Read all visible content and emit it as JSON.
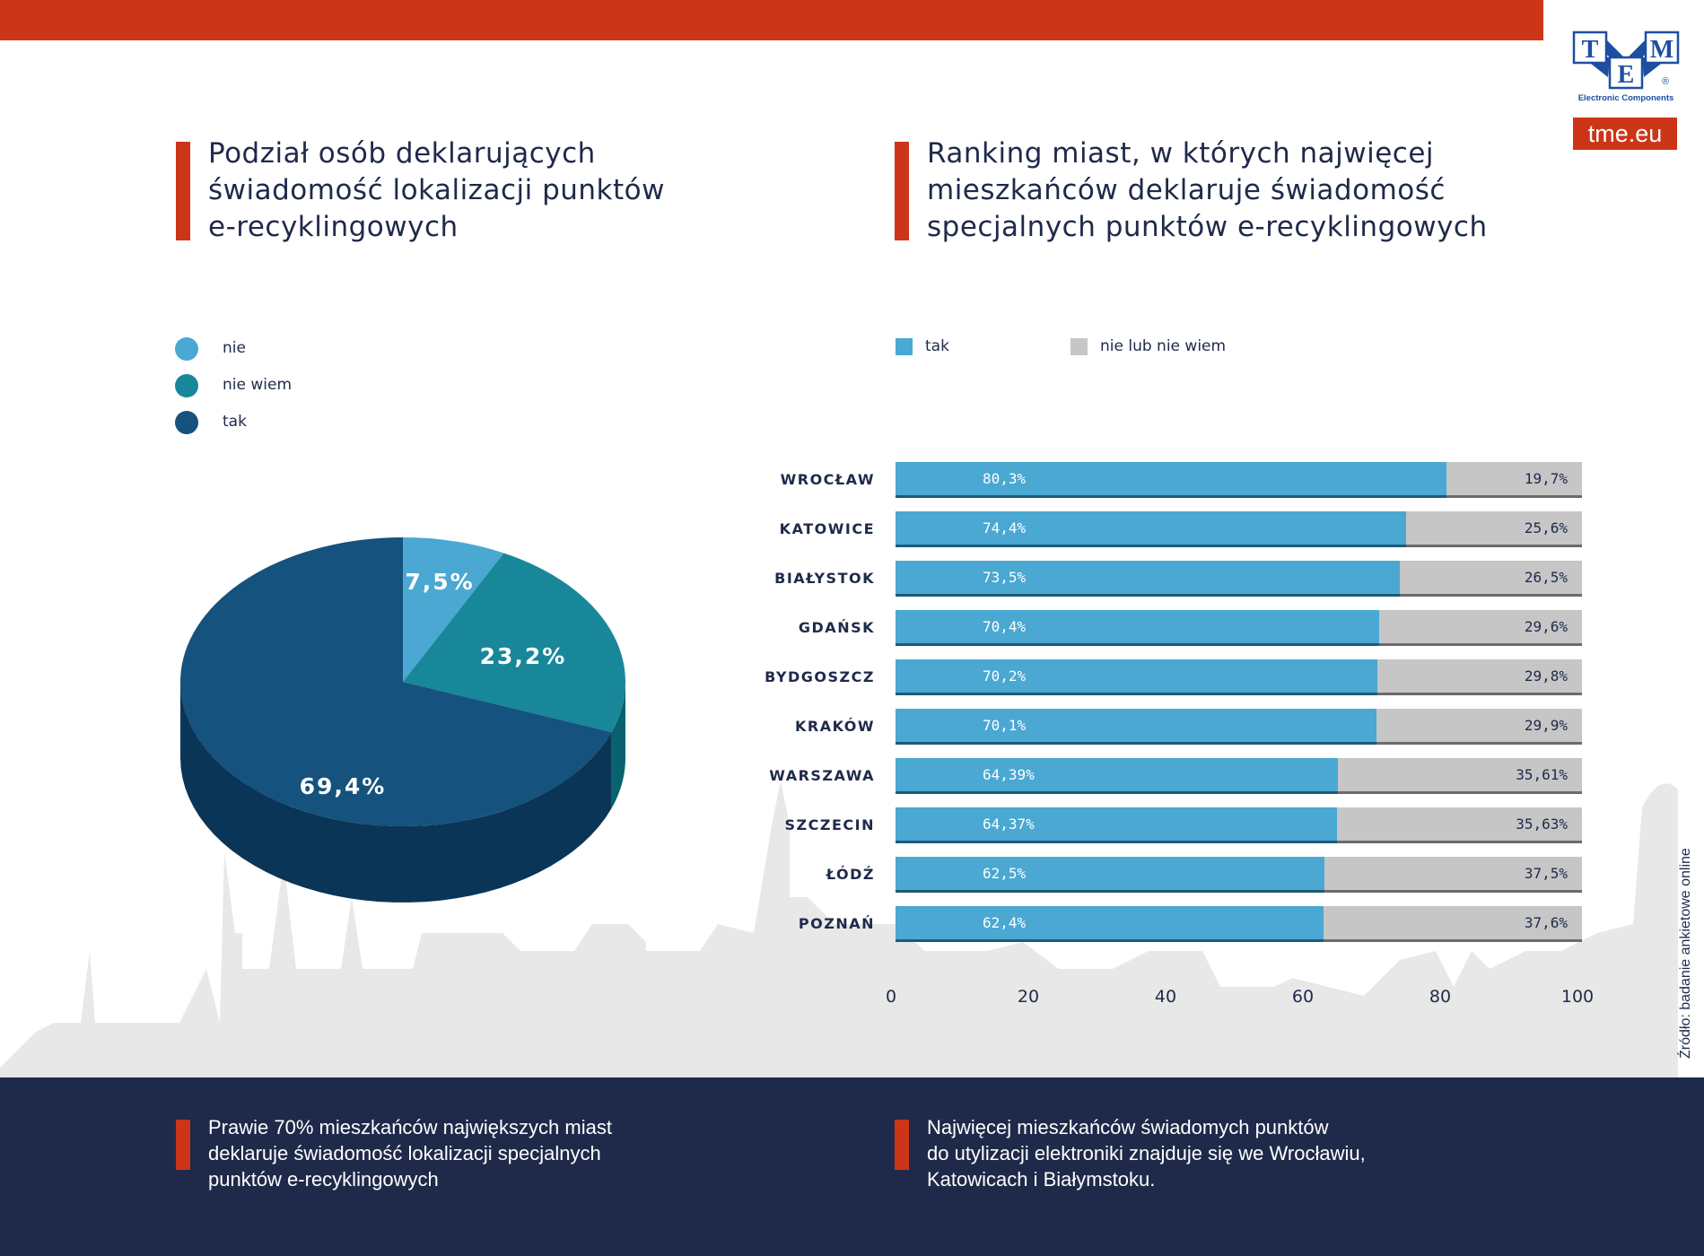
{
  "brand": {
    "logo_letters": [
      "T",
      "M",
      "E"
    ],
    "logo_tagline": "Electronic Components",
    "logo_mark": "®",
    "site": "tme.eu",
    "accent_color": "#cc3518",
    "dark_color": "#1f2a4a"
  },
  "chart_data": [
    {
      "type": "pie",
      "title": "Podział osób deklarujących świadomość lokalizacji punktów e-recyklingowych",
      "title_lines": [
        "Podział osób deklarujących",
        "świadomość lokalizacji punktów",
        "e-recyklingowych"
      ],
      "legend_position": "top-left",
      "legend": [
        {
          "label": "nie",
          "color": "#4aa8d2"
        },
        {
          "label": "nie wiem",
          "color": "#188799"
        },
        {
          "label": "tak",
          "color": "#15527d"
        }
      ],
      "slices": [
        {
          "label": "nie",
          "value": 7.5,
          "display": "7,5%",
          "color": "#4aa8d2",
          "side_color": "#2f7ea3"
        },
        {
          "label": "nie wiem",
          "value": 23.2,
          "display": "23,2%",
          "color": "#188799",
          "side_color": "#07616f"
        },
        {
          "label": "tak",
          "value": 69.4,
          "display": "69,4%",
          "color": "#15527d",
          "side_color": "#0b3556"
        }
      ]
    },
    {
      "type": "bar",
      "orientation": "horizontal",
      "stacked": true,
      "title": "Ranking miast, w których najwięcej mieszkańców deklaruje świadomość specjalnych punktów e-recyklingowych",
      "title_lines": [
        "Ranking miast, w których najwięcej",
        "mieszkańców deklaruje świadomość",
        "specjalnych punktów e-recyklingowych"
      ],
      "legend_position": "top-left",
      "xlim": [
        0,
        100
      ],
      "xticks": [
        "0",
        "20",
        "40",
        "60",
        "80",
        "100"
      ],
      "grid": false,
      "categories": [
        "WROCŁAW",
        "KATOWICE",
        "BIAŁYSTOK",
        "GDAŃSK",
        "BYDGOSZCZ",
        "KRAKÓW",
        "WARSZAWA",
        "SZCZECIN",
        "ŁÓDŹ",
        "POZNAŃ"
      ],
      "series": [
        {
          "name": "tak",
          "color": "#4aa8d2",
          "values": [
            80.3,
            74.4,
            73.5,
            70.4,
            70.2,
            70.1,
            64.39,
            64.37,
            62.5,
            62.4
          ],
          "labels": [
            "80,3%",
            "74,4%",
            "73,5%",
            "70,4%",
            "70,2%",
            "70,1%",
            "64,39%",
            "64,37%",
            "62,5%",
            "62,4%"
          ]
        },
        {
          "name": "nie lub nie wiem",
          "color": "#c6c6c6",
          "values": [
            19.7,
            25.6,
            26.5,
            29.6,
            29.8,
            29.9,
            35.61,
            35.63,
            37.5,
            37.6
          ],
          "labels": [
            "19,7%",
            "25,6%",
            "26,5%",
            "29,6%",
            "29,8%",
            "29,9%",
            "35,61%",
            "35,63%",
            "37,5%",
            "37,6%"
          ]
        }
      ]
    }
  ],
  "footer": {
    "left": [
      "Prawie 70% mieszkańców największych miast",
      "deklaruje świadomość lokalizacji specjalnych",
      "punktów e-recyklingowych"
    ],
    "right": [
      "Najwięcej mieszkańców świadomych punktów",
      "do utylizacji elektroniki znajduje się we Wrocławiu,",
      "Katowicach i Białymstoku."
    ]
  },
  "source": "Źródło: badanie ankietowe online"
}
